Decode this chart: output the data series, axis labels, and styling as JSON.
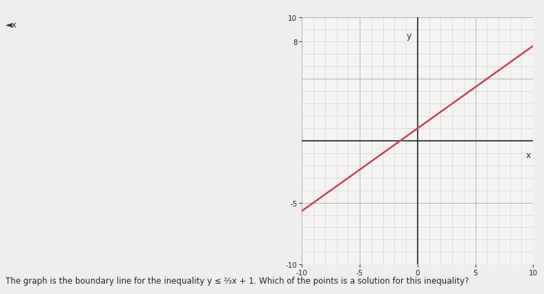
{
  "xlabel": "x",
  "ylabel": "y",
  "xlim": [
    -10,
    10
  ],
  "ylim": [
    -10,
    10
  ],
  "line_slope": 0.6667,
  "line_intercept": 1,
  "line_color": "#c04060",
  "line_width": 1.8,
  "grid_color": "#b0b0b0",
  "grid_linewidth": 0.5,
  "minor_grid_color": "#cccccc",
  "axis_color": "#333333",
  "page_bg_color": "#f0eeec",
  "plot_bg_color": "#f5f3f1",
  "tick_label_color": "#222222",
  "xtick_labels": [
    "-10",
    "-5",
    "0",
    "5",
    "10"
  ],
  "xtick_positions": [
    -10,
    -5,
    0,
    5,
    10
  ],
  "ytick_labels": [
    "10",
    "8",
    "-5",
    "-10"
  ],
  "ytick_positions": [
    10,
    8,
    -5,
    -10
  ],
  "speaker_icon": "◄x",
  "caption": "The graph is the boundary line for the inequality y ≤ ²⁄₃x + 1. Which of the points is a solution for this inequality?"
}
